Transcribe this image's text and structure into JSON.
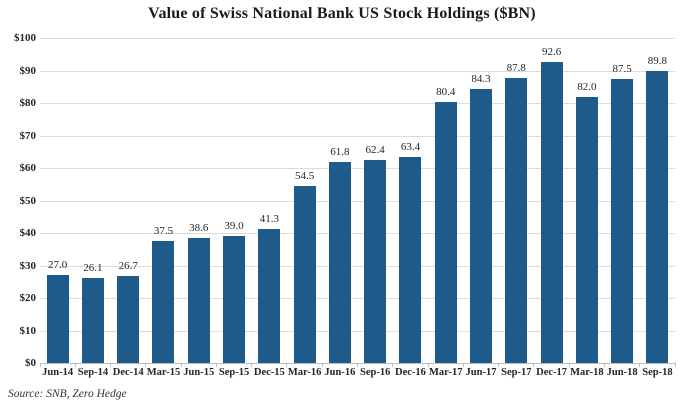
{
  "title": "Value of Swiss National Bank US Stock Holdings ($BN)",
  "source": "Source: SNB, Zero Hedge",
  "colors": {
    "bar": "#1e5a8a",
    "grid": "#dcdcdc",
    "axis": "#bfbfbf",
    "text": "#262626"
  },
  "chart_data": {
    "type": "bar",
    "title": "Value of Swiss National Bank US Stock Holdings ($BN)",
    "categories": [
      "Jun-14",
      "Sep-14",
      "Dec-14",
      "Mar-15",
      "Jun-15",
      "Sep-15",
      "Dec-15",
      "Mar-16",
      "Jun-16",
      "Sep-16",
      "Dec-16",
      "Mar-17",
      "Jun-17",
      "Sep-17",
      "Dec-17",
      "Mar-18",
      "Jun-18",
      "Sep-18"
    ],
    "values": [
      27.0,
      26.1,
      26.7,
      37.5,
      38.6,
      39.0,
      41.3,
      54.5,
      61.8,
      62.4,
      63.4,
      80.4,
      84.3,
      87.8,
      92.6,
      82.0,
      87.5,
      89.8
    ],
    "xlabel": "",
    "ylabel": "",
    "ylim": [
      0,
      100
    ],
    "ytick_step": 10,
    "ytick_labels": [
      "$100",
      "$90",
      "$80",
      "$70",
      "$60",
      "$50",
      "$40",
      "$30",
      "$20",
      "$10",
      "$0"
    ],
    "grid": true,
    "legend_position": "none",
    "value_labels": true,
    "source": "Source: SNB, Zero Hedge"
  }
}
